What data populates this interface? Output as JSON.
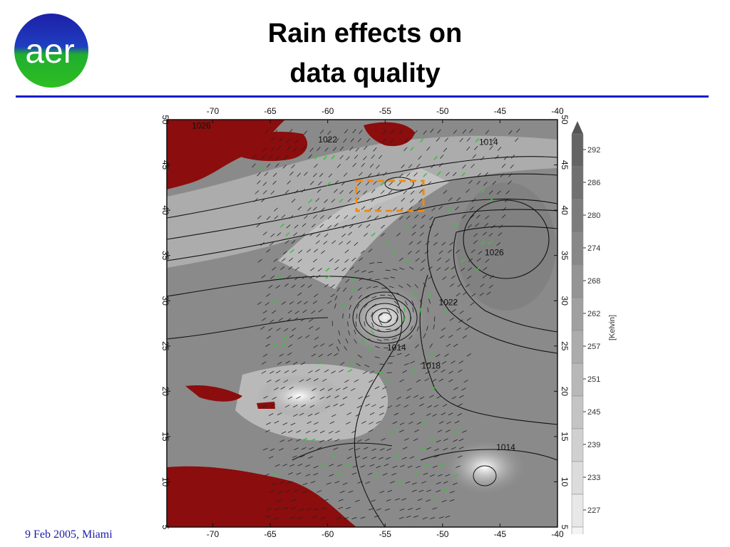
{
  "slide": {
    "title_line1": "Rain effects on",
    "title_line2": "data quality",
    "logo_text": "aer",
    "footer": "9 Feb 2005, Miami"
  },
  "map": {
    "lon_labels": [
      "-70",
      "-65",
      "-60",
      "-55",
      "-50",
      "-45",
      "-40"
    ],
    "lat_labels": [
      "50",
      "45",
      "40",
      "35",
      "30",
      "25",
      "20",
      "15",
      "10",
      "5"
    ],
    "lon_range": [
      -74,
      -40
    ],
    "lat_range": [
      5,
      50
    ],
    "isobar_labels": [
      {
        "text": "1014",
        "lon": -46,
        "lat": 47.2
      },
      {
        "text": "1026",
        "lon": -45.5,
        "lat": 35
      },
      {
        "text": "1022",
        "lon": -49.5,
        "lat": 29.5
      },
      {
        "text": "1018",
        "lon": -51,
        "lat": 22.5
      },
      {
        "text": "1014",
        "lon": -44.5,
        "lat": 13.5
      },
      {
        "text": "1014",
        "lon": -54,
        "lat": 24.5
      },
      {
        "text": "1022",
        "lon": -60,
        "lat": 47.5
      },
      {
        "text": "1026",
        "lon": -71,
        "lat": 49
      }
    ],
    "colors": {
      "land": "#8b0d0d",
      "ocean": "#8a8a8a",
      "rain_flag": "#3fbf3f",
      "box": "#f08a10"
    }
  },
  "colorbar": {
    "unit": "[Kelvin]",
    "labels": [
      "292",
      "286",
      "280",
      "274",
      "268",
      "262",
      "257",
      "251",
      "245",
      "239",
      "233",
      "227"
    ]
  }
}
